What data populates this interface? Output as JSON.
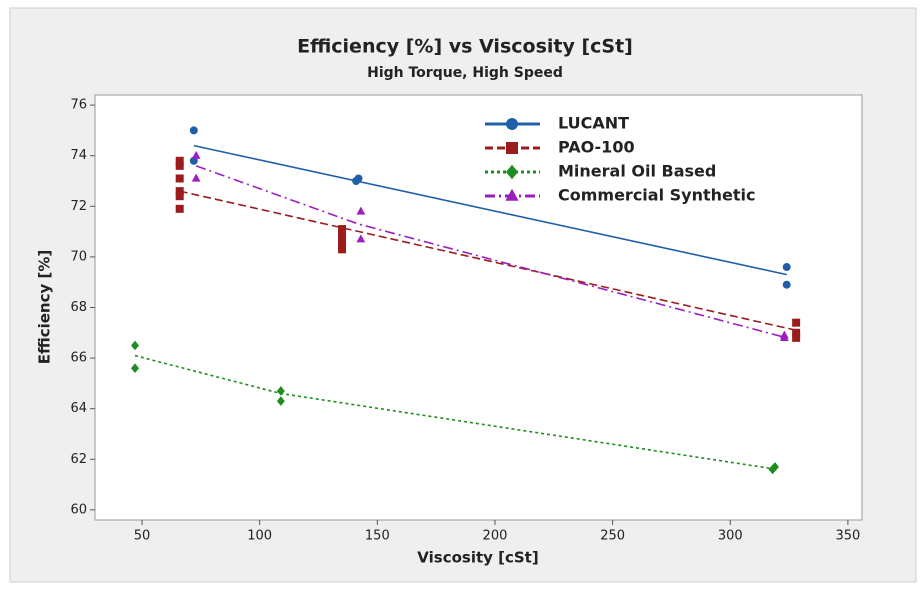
{
  "chart_data": {
    "type": "scatter",
    "title": "Efficiency [%] vs Viscosity [cSt]",
    "subtitle": "High Torque, High Speed",
    "x_label": "Viscosity [cSt]",
    "y_label": "Efficiency [%]",
    "xlim": [
      30,
      356
    ],
    "xticks": [
      50,
      100,
      150,
      200,
      250,
      300,
      350
    ],
    "ylim": [
      59.6,
      76.4
    ],
    "yticks": [
      60,
      62,
      64,
      66,
      68,
      70,
      72,
      74,
      76
    ],
    "legend": "top-right",
    "series": [
      {
        "name": "LUCANT",
        "color": "#1f5fa8",
        "marker": "circle",
        "dash": "solid",
        "x": [
          72,
          72,
          141,
          142,
          324,
          324
        ],
        "values": [
          75.0,
          73.8,
          73.0,
          73.1,
          69.6,
          68.9
        ],
        "fit": {
          "x": [
            72,
            324
          ],
          "values": [
            74.4,
            69.3
          ]
        }
      },
      {
        "name": "PAO-100",
        "color": "#9b1c1c",
        "marker": "square",
        "dash": "dash",
        "x": [
          66,
          66,
          66,
          66,
          66,
          66,
          135,
          135,
          135,
          135,
          328,
          328,
          328
        ],
        "values": [
          73.8,
          73.6,
          73.1,
          72.6,
          72.4,
          71.9,
          71.1,
          70.8,
          70.6,
          70.3,
          67.4,
          67.0,
          66.8
        ],
        "fit": {
          "x": [
            66,
            328
          ],
          "values": [
            72.6,
            67.1
          ]
        }
      },
      {
        "name": "Mineral Oil Based",
        "color": "#1e8c1e",
        "marker": "diamond",
        "dash": "dot",
        "x": [
          47,
          47,
          109,
          109,
          318,
          319
        ],
        "values": [
          66.5,
          65.6,
          64.7,
          64.3,
          61.6,
          61.7
        ],
        "fit": {
          "x": [
            47,
            109,
            320
          ],
          "values": [
            66.1,
            64.6,
            61.6
          ]
        }
      },
      {
        "name": "Commercial Synthetic",
        "color": "#9b1fc0",
        "marker": "triangle",
        "dash": "dashdot",
        "x": [
          73,
          73,
          143,
          143,
          323,
          323
        ],
        "values": [
          74.0,
          73.1,
          71.8,
          70.7,
          66.9,
          66.8
        ],
        "fit": {
          "x": [
            73,
            142,
            324
          ],
          "values": [
            73.6,
            71.3,
            66.8
          ]
        }
      }
    ]
  }
}
